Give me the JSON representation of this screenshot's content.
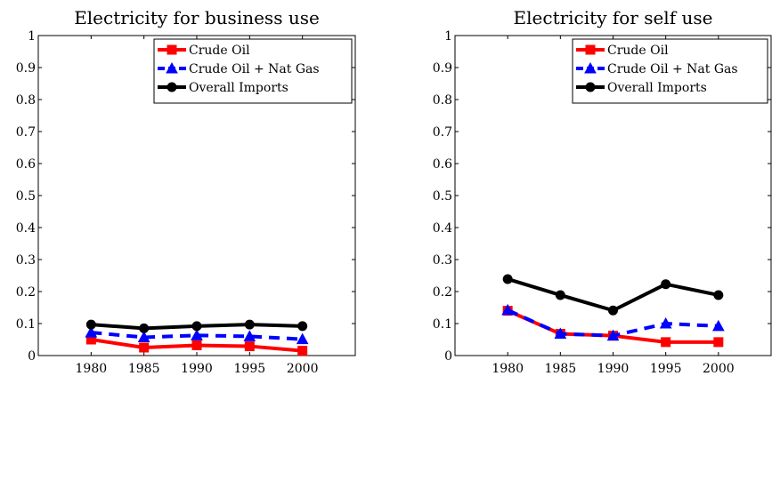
{
  "chart_data": [
    {
      "type": "line",
      "title": "Electricity for business use",
      "x": [
        1980,
        1985,
        1990,
        1995,
        2000
      ],
      "xlim": [
        1975,
        2005
      ],
      "ylim": [
        0,
        1
      ],
      "yticks": [
        0,
        0.1,
        0.2,
        0.3,
        0.4,
        0.5,
        0.6,
        0.7,
        0.8,
        0.9,
        1
      ],
      "ytick_labels": [
        "0",
        "0.1",
        "0.2",
        "0.3",
        "0.4",
        "0.5",
        "0.6",
        "0.7",
        "0.8",
        "0.9",
        "1"
      ],
      "xtick_labels": [
        "1980",
        "1985",
        "1990",
        "1995",
        "2000"
      ],
      "legend_position": "top-right",
      "grid": false,
      "series": [
        {
          "name": "Crude Oil",
          "values": [
            0.05,
            0.025,
            0.032,
            0.029,
            0.015
          ],
          "color": "#ff0000",
          "marker": "square",
          "dash": "solid"
        },
        {
          "name": "Crude Oil + Nat Gas",
          "values": [
            0.072,
            0.057,
            0.063,
            0.06,
            0.051
          ],
          "color": "#0000ff",
          "marker": "triangle",
          "dash": "dashed"
        },
        {
          "name": "Overall Imports",
          "values": [
            0.097,
            0.085,
            0.092,
            0.097,
            0.092
          ],
          "color": "#000000",
          "marker": "circle",
          "dash": "solid"
        }
      ]
    },
    {
      "type": "line",
      "title": "Electricity for self use",
      "x": [
        1980,
        1985,
        1990,
        1995,
        2000
      ],
      "xlim": [
        1975,
        2005
      ],
      "ylim": [
        0,
        1
      ],
      "yticks": [
        0,
        0.1,
        0.2,
        0.3,
        0.4,
        0.5,
        0.6,
        0.7,
        0.8,
        0.9,
        1
      ],
      "ytick_labels": [
        "0",
        "0.1",
        "0.2",
        "0.3",
        "0.4",
        "0.5",
        "0.6",
        "0.7",
        "0.8",
        "0.9",
        "1"
      ],
      "xtick_labels": [
        "1980",
        "1985",
        "1990",
        "1995",
        "2000"
      ],
      "legend_position": "top-right",
      "grid": false,
      "series": [
        {
          "name": "Crude Oil",
          "values": [
            0.14,
            0.068,
            0.062,
            0.042,
            0.042
          ],
          "color": "#ff0000",
          "marker": "square",
          "dash": "solid"
        },
        {
          "name": "Crude Oil + Nat Gas",
          "values": [
            0.142,
            0.068,
            0.062,
            0.1,
            0.092
          ],
          "color": "#0000ff",
          "marker": "triangle",
          "dash": "dashed"
        },
        {
          "name": "Overall Imports",
          "values": [
            0.239,
            0.189,
            0.141,
            0.223,
            0.189
          ],
          "color": "#000000",
          "marker": "circle",
          "dash": "solid"
        }
      ]
    }
  ]
}
